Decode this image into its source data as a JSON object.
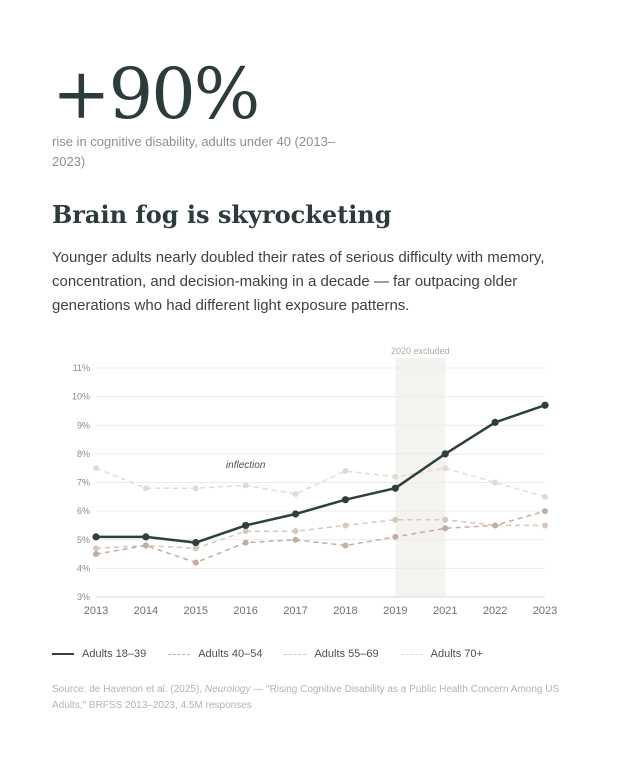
{
  "hero": {
    "stat": "+90%",
    "caption": "rise in cognitive disability, adults under 40 (2013–2023)"
  },
  "headline": "Brain fog is skyrocketing",
  "lede": "Younger adults nearly doubled their rates of serious difficulty with memory, concentration, and decision-making in a decade — far outpacing older generations who had different light exposure patterns.",
  "source": {
    "prefix": "Source: de Havenon et al. (2025), ",
    "journal": "Neurology",
    "suffix": " — \"Rising Cognitive Disability as a Public Health Concern Among US Adults,\" BRFSS 2013–2023, 4.5M responses"
  },
  "colors": {
    "adults_18_39": "#2d3f41",
    "adults_40_54": "#c2ada2",
    "adults_55_69": "#d6c8bb",
    "adults_70_plus": "#e3dad2",
    "grid": "#ececec",
    "excluded_band": "#f5f3ef",
    "axis_text": "#8a8a8a"
  },
  "chart_data": {
    "type": "line",
    "x": [
      "2013",
      "2014",
      "2015",
      "2016",
      "2017",
      "2018",
      "2019",
      "2021",
      "2022",
      "2023"
    ],
    "ylim": [
      3,
      11
    ],
    "yticks": [
      "3%",
      "4%",
      "5%",
      "6%",
      "7%",
      "8%",
      "9%",
      "10%",
      "11%"
    ],
    "grid": true,
    "legend": "bottom",
    "series": [
      {
        "name": "Adults 18–39",
        "style": "solid",
        "values": [
          5.1,
          5.1,
          4.9,
          5.5,
          5.9,
          6.4,
          6.8,
          8.0,
          9.1,
          9.7
        ]
      },
      {
        "name": "Adults 40–54",
        "style": "dashed",
        "values": [
          4.5,
          4.8,
          4.2,
          4.9,
          5.0,
          4.8,
          5.1,
          5.4,
          5.5,
          6.0
        ]
      },
      {
        "name": "Adults 55–69",
        "style": "dashed",
        "values": [
          4.7,
          4.8,
          4.7,
          5.3,
          5.3,
          5.5,
          5.7,
          5.7,
          5.5,
          5.5
        ]
      },
      {
        "name": "Adults 70+",
        "style": "dashed",
        "values": [
          7.5,
          6.8,
          6.8,
          6.9,
          6.6,
          7.4,
          7.2,
          7.5,
          7.0,
          6.5
        ]
      }
    ],
    "annotations": [
      {
        "text": "inflection",
        "x": "2016",
        "y": 7.5
      },
      {
        "text": "2020 excluded",
        "x_from": "2019",
        "x_to": "2021"
      }
    ]
  }
}
